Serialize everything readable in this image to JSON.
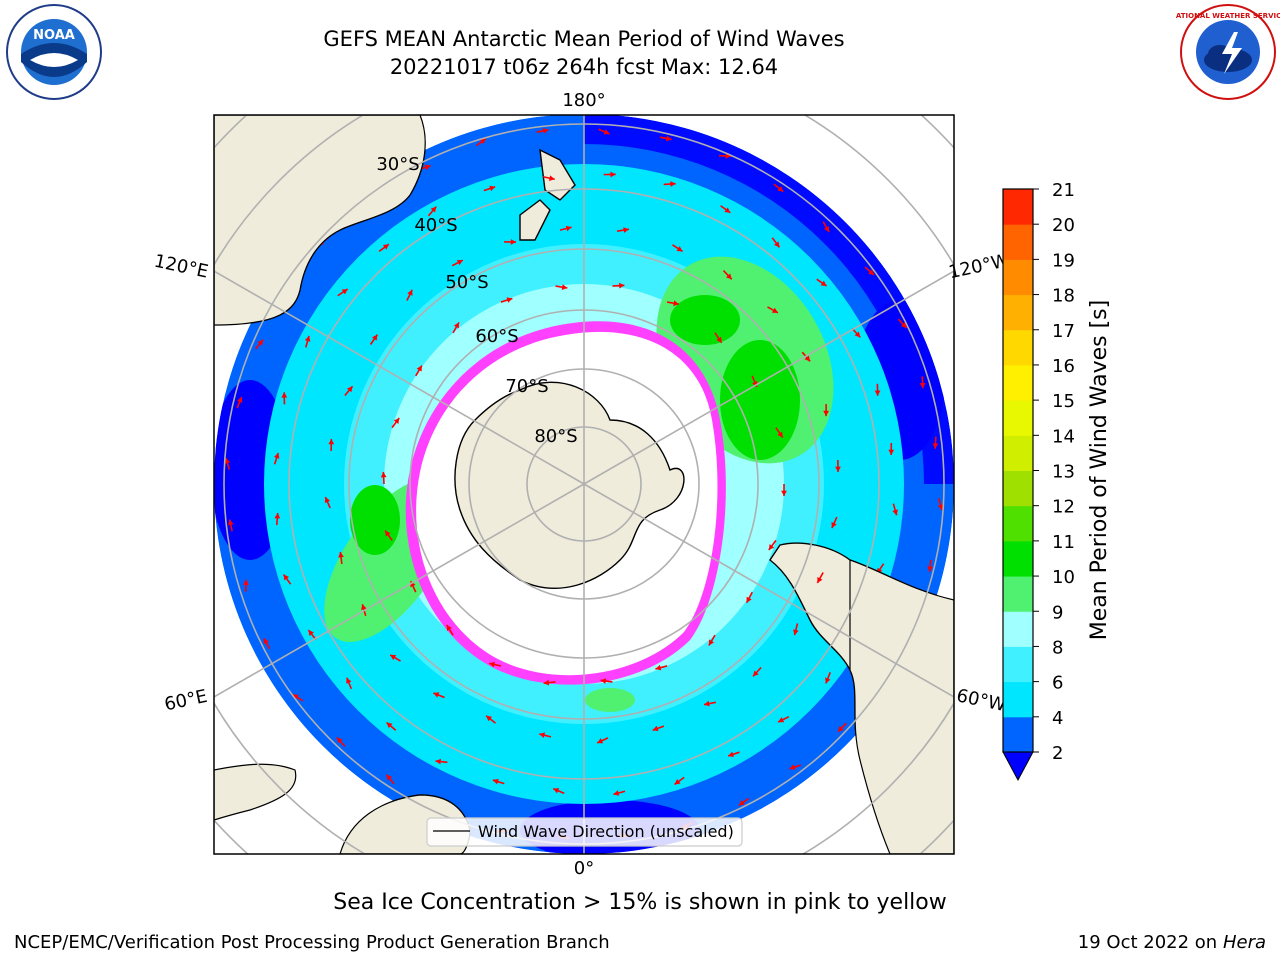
{
  "title": {
    "line1": "GEFS MEAN Antarctic Mean Period of Wind Waves",
    "line2": "20221017 t06z 264h fcst   Max: 12.64"
  },
  "logos": {
    "left": "NOAA",
    "right": "NATIONAL WEATHER SERVICE"
  },
  "map": {
    "projection": "south-polar-stereographic",
    "lon_labels": [
      "180°",
      "120°E",
      "120°W",
      "60°E",
      "60°W",
      "0°"
    ],
    "lat_labels": [
      "30°S",
      "40°S",
      "50°S",
      "60°S",
      "70°S",
      "80°S"
    ],
    "legend_label": "Wind Wave Direction (unscaled)",
    "colors": {
      "land": "#efecdc",
      "ice_edge": "#ff40ff",
      "ice_fill": "#ffffff",
      "arrow": "#ff0000"
    }
  },
  "colorbar": {
    "label": "Mean Period of Wind Waves [s]",
    "ticks": [
      "2",
      "4",
      "6",
      "8",
      "9",
      "10",
      "11",
      "12",
      "13",
      "14",
      "15",
      "16",
      "17",
      "18",
      "19",
      "20",
      "21"
    ],
    "colors": [
      "#0064ff",
      "#00e6ff",
      "#40f0ff",
      "#a0ffff",
      "#50f070",
      "#00e000",
      "#50e000",
      "#a0e000",
      "#d0ee00",
      "#e8f800",
      "#fff000",
      "#ffd800",
      "#ffb000",
      "#ff8c00",
      "#ff6400",
      "#ff2800"
    ],
    "under_color": "#0000ff",
    "extend": "min"
  },
  "footer": {
    "caption": "Sea Ice Concentration > 15% is shown in pink to yellow",
    "left": "NCEP/EMC/Verification Post Processing Product Generation Branch",
    "right_prefix": "19 Oct 2022 on ",
    "right_machine": "Hera"
  }
}
